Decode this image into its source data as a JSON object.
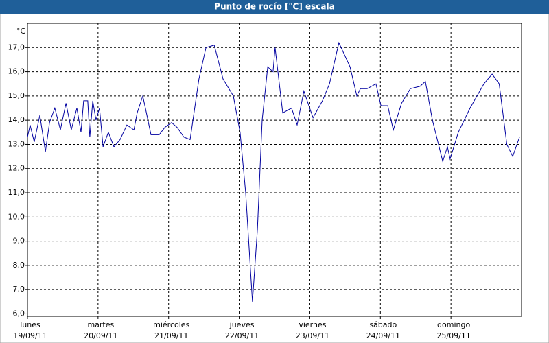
{
  "chart_data": {
    "type": "line",
    "title": "Punto de rocío [°C] escala",
    "y_unit": "°C",
    "xlim": [
      0,
      168
    ],
    "ylim": [
      5.9,
      18.0
    ],
    "grid": true,
    "xticks": [
      {
        "value": 0,
        "label": "lunes",
        "date": "19/09/11"
      },
      {
        "value": 24,
        "label": "martes",
        "date": "20/09/11"
      },
      {
        "value": 48,
        "label": "miércoles",
        "date": "21/09/11"
      },
      {
        "value": 72,
        "label": "jueves",
        "date": "22/09/11"
      },
      {
        "value": 96,
        "label": "viernes",
        "date": "23/09/11"
      },
      {
        "value": 120,
        "label": "sábado",
        "date": "24/09/11"
      },
      {
        "value": 144,
        "label": "domingo",
        "date": "25/09/11"
      }
    ],
    "yticks": [
      {
        "value": 6,
        "label": "6,0"
      },
      {
        "value": 7,
        "label": "7,0"
      },
      {
        "value": 8,
        "label": "8,0"
      },
      {
        "value": 9,
        "label": "9,0"
      },
      {
        "value": 10,
        "label": "10,0"
      },
      {
        "value": 11,
        "label": "11,0"
      },
      {
        "value": 12,
        "label": "12,0"
      },
      {
        "value": 13,
        "label": "13,0"
      },
      {
        "value": 14,
        "label": "14,0"
      },
      {
        "value": 15,
        "label": "15,0"
      },
      {
        "value": 16,
        "label": "16,0"
      },
      {
        "value": 17,
        "label": "17,0"
      }
    ],
    "series": [
      {
        "color": "#0000a0",
        "x": [
          0,
          0.9,
          2.3,
          4.2,
          6.1,
          7.5,
          9.3,
          11.2,
          13.1,
          14.9,
          16.8,
          18.2,
          19.1,
          20.5,
          21.2,
          22.2,
          23.3,
          24.5,
          25.7,
          27.5,
          29.4,
          31.5,
          33.8,
          36.2,
          37.3,
          39.2,
          40.1,
          42,
          44.8,
          46.7,
          49,
          50.9,
          53.2,
          55.3,
          58.3,
          60.7,
          63.5,
          66.5,
          70,
          72.3,
          74.2,
          76.5,
          78.2,
          79.8,
          81.7,
          83.5,
          84.2,
          86.8,
          89.8,
          91.7,
          94,
          97.1,
          100.3,
          102.7,
          105.9,
          109.7,
          112,
          113.2,
          115.5,
          118.5,
          120.2,
          122.5,
          124.4,
          127.2,
          130.2,
          133.5,
          135.3,
          137.7,
          141.2,
          142.8,
          143.7,
          146.5,
          150.5,
          155.2,
          158,
          160.4,
          163,
          165,
          167.3
        ],
        "values": [
          13.3,
          13.8,
          13.1,
          14.2,
          12.7,
          13.9,
          14.5,
          13.6,
          14.7,
          13.6,
          14.5,
          13.5,
          14.8,
          14.8,
          13.3,
          14.8,
          14.0,
          14.5,
          12.9,
          13.5,
          12.9,
          13.2,
          13.8,
          13.6,
          14.3,
          15.0,
          14.5,
          13.4,
          13.4,
          13.7,
          13.9,
          13.7,
          13.3,
          13.2,
          15.7,
          17.0,
          17.1,
          15.7,
          15.0,
          13.5,
          11.0,
          6.5,
          9.5,
          14.0,
          16.2,
          16.0,
          17.0,
          14.3,
          14.5,
          13.8,
          15.2,
          14.1,
          14.8,
          15.5,
          17.2,
          16.2,
          15.0,
          15.3,
          15.3,
          15.5,
          14.6,
          14.6,
          13.6,
          14.7,
          15.3,
          15.4,
          15.6,
          14.0,
          12.3,
          12.9,
          12.4,
          13.5,
          14.5,
          15.5,
          15.9,
          15.5,
          13.0,
          12.5,
          13.3
        ]
      }
    ]
  }
}
